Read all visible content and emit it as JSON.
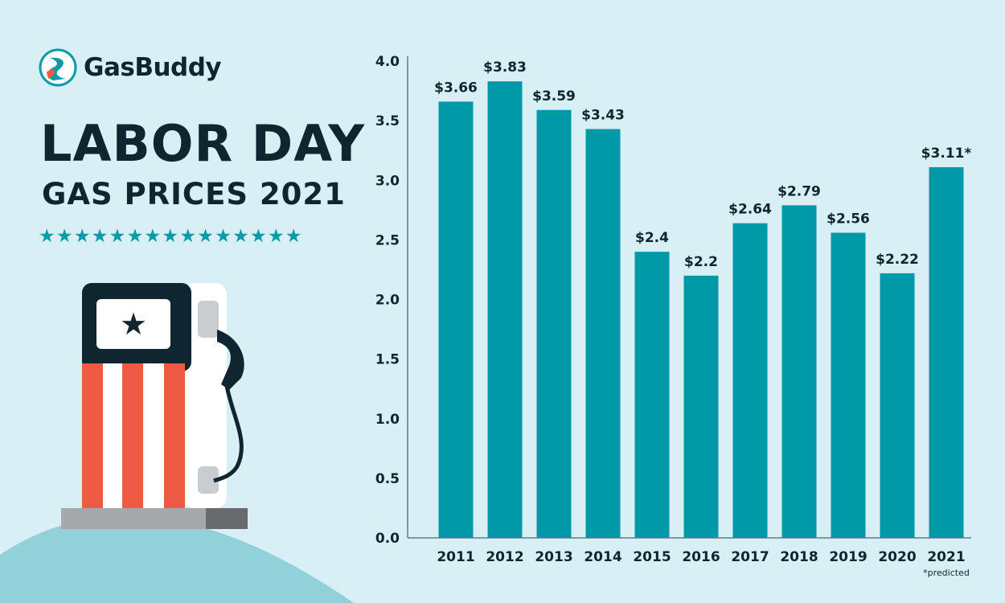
{
  "brand": {
    "name": "GasBuddy"
  },
  "title": {
    "line1": "LABOR DAY",
    "line2": "GAS PRICES 2021",
    "stars": "★★★★★★★★★★★★★★★"
  },
  "colors": {
    "background": "#d7eff5",
    "bar": "#0099a8",
    "text": "#0f2530",
    "accent_red": "#ee5a43",
    "star": "#0a9aa8"
  },
  "chart_data": {
    "type": "bar",
    "categories": [
      "2011",
      "2012",
      "2013",
      "2014",
      "2015",
      "2016",
      "2017",
      "2018",
      "2019",
      "2020",
      "2021"
    ],
    "values": [
      3.66,
      3.83,
      3.59,
      3.43,
      2.4,
      2.2,
      2.64,
      2.79,
      2.56,
      2.22,
      3.11
    ],
    "data_labels": [
      "$3.66",
      "$3.83",
      "$3.59",
      "$3.43",
      "$2.4",
      "$2.2",
      "$2.64",
      "$2.79",
      "$2.56",
      "$2.22",
      "$3.11*"
    ],
    "yticks": [
      "0.0",
      "0.5",
      "1.0",
      "1.5",
      "2.0",
      "2.5",
      "3.0",
      "3.5",
      "4.0"
    ],
    "ylim": [
      0,
      4
    ],
    "grid": false,
    "note": "*predicted"
  }
}
